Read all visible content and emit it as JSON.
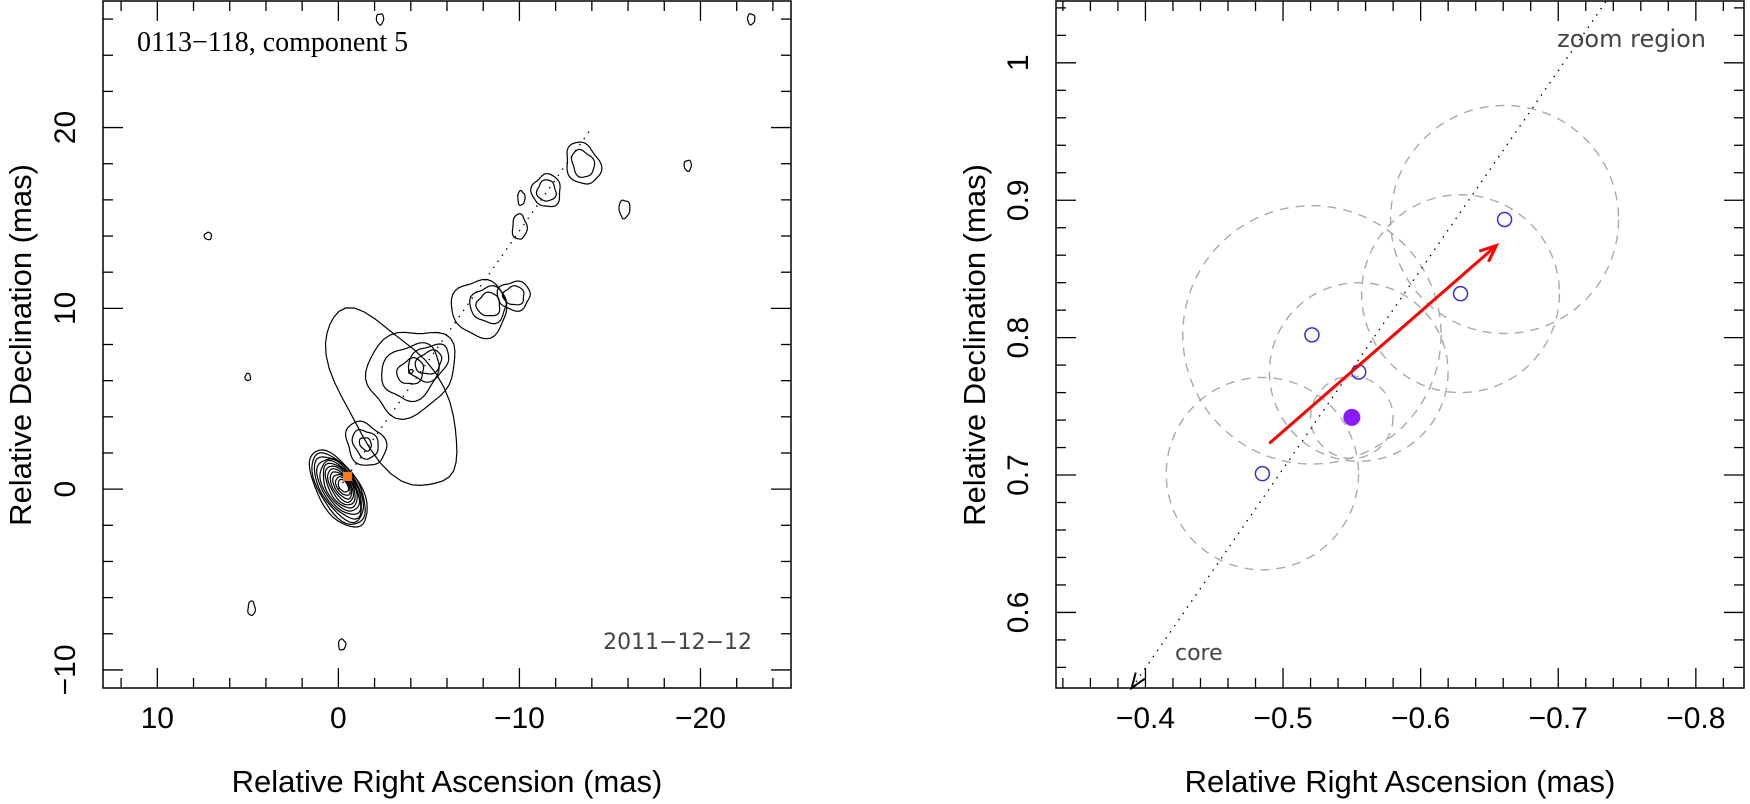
{
  "chart_data": [
    {
      "type": "contour",
      "title": "0113−118, component 5",
      "epoch": "2011−12−12",
      "xlabel": "Relative Right Ascension (mas)",
      "ylabel": "Relative Declination (mas)",
      "xlim": [
        13,
        -25
      ],
      "ylim": [
        -11,
        27
      ],
      "xticks": [
        10,
        0,
        -10,
        -20
      ],
      "xtick_labels": [
        "10",
        "0",
        "−10",
        "−20"
      ],
      "yticks": [
        -10,
        0,
        10,
        20
      ],
      "ytick_labels": [
        "−10",
        "0",
        "10",
        "20"
      ],
      "jet_axis": {
        "from": [
          0,
          0
        ],
        "to": [
          -14,
          20
        ]
      },
      "component_marker": {
        "x": -0.5,
        "y": 0.7,
        "color": "#ff7a1a"
      },
      "contour_levels": 12
    },
    {
      "type": "scatter",
      "title": "zoom region",
      "xlabel": "Relative Right Ascension (mas)",
      "ylabel": "Relative Declination (mas)",
      "xlim": [
        -0.335,
        -0.835
      ],
      "ylim": [
        0.545,
        1.045
      ],
      "xticks": [
        -0.4,
        -0.5,
        -0.6,
        -0.7,
        -0.8
      ],
      "xtick_labels": [
        "−0.4",
        "−0.5",
        "−0.6",
        "−0.7",
        "−0.8"
      ],
      "yticks": [
        0.6,
        0.7,
        0.8,
        0.9,
        1.0
      ],
      "ytick_labels": [
        "0.6",
        "0.7",
        "0.8",
        "0.9",
        "1"
      ],
      "core_label": "core",
      "points": [
        {
          "x": -0.485,
          "y": 0.701,
          "r": 0.07
        },
        {
          "x": -0.521,
          "y": 0.802,
          "r": 0.094
        },
        {
          "x": -0.555,
          "y": 0.775,
          "r": 0.065
        },
        {
          "x": -0.629,
          "y": 0.832,
          "r": 0.072
        },
        {
          "x": -0.661,
          "y": 0.886,
          "r": 0.083
        }
      ],
      "mean_point": {
        "x": -0.55,
        "y": 0.742,
        "r": 0.03
      },
      "velocity_arrow": {
        "from": [
          -0.49,
          0.723
        ],
        "to": [
          -0.655,
          0.867
        ],
        "color": "#ff0000"
      },
      "jet_axis": {
        "from": [
          -0.39,
          0.545
        ],
        "to": [
          -0.735,
          1.045
        ]
      },
      "point_color": "#3333cc",
      "mean_color": "#8b1aff",
      "circle_color": "#aaaaaa"
    }
  ]
}
